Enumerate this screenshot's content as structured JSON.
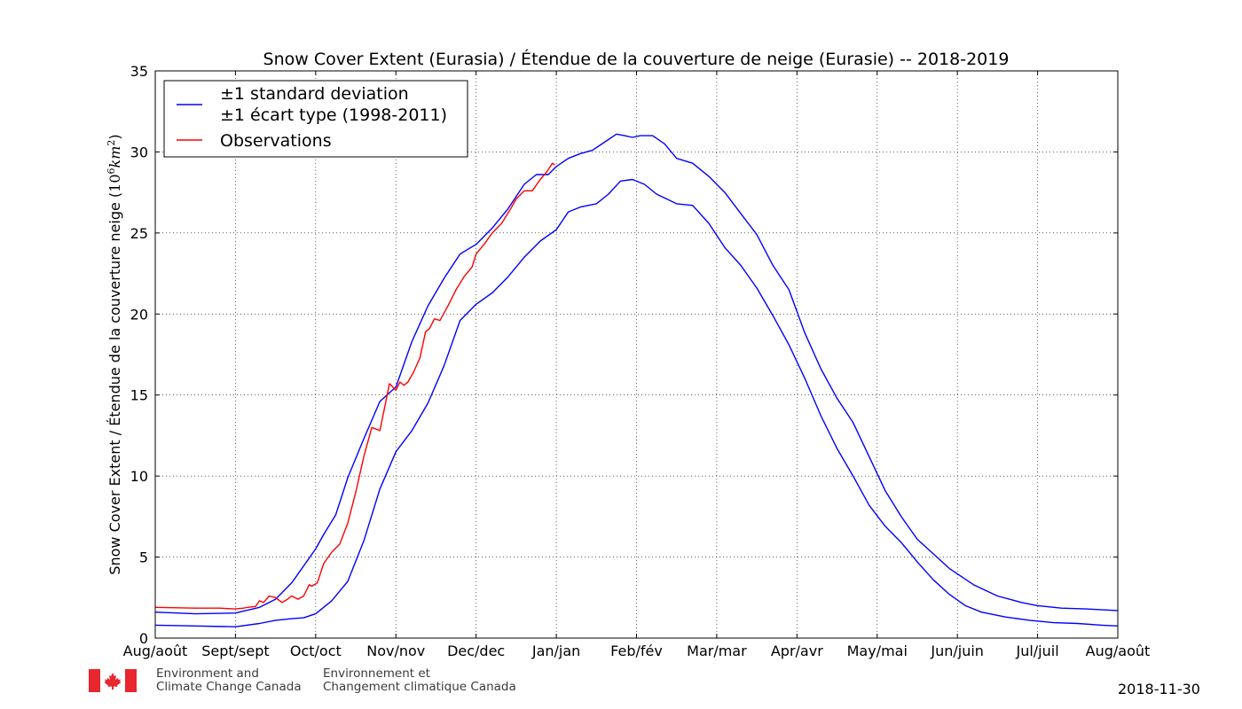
{
  "chart_data": {
    "type": "line",
    "title": "Snow Cover Extent (Eurasia) / Étendue de la couverture de neige (Eurasie) -- 2018-2019",
    "ylabel": "Snow Cover Extent / Étendue de la couverture neige",
    "ylabel_unit_base": "10",
    "ylabel_unit_exp": "6",
    "ylabel_unit_km": "km",
    "ylabel_unit_km_exp": "2",
    "x_ticks": [
      "Aug/août",
      "Sept/sept",
      "Oct/oct",
      "Nov/nov",
      "Dec/dec",
      "Jan/jan",
      "Feb/fév",
      "Mar/mar",
      "Apr/avr",
      "May/mai",
      "Jun/juin",
      "Jul/juil",
      "Aug/août"
    ],
    "y_ticks": [
      0,
      5,
      10,
      15,
      20,
      25,
      30,
      35
    ],
    "ylim": [
      0,
      35
    ],
    "grid": true,
    "legend_position": "top-left",
    "legend": [
      {
        "label_line1": "±1 standard deviation",
        "label_line2": "±1 écart type (1998-2011)",
        "color": "#0000ff"
      },
      {
        "label_line1": "Observations",
        "color": "#ff0000"
      }
    ],
    "series": [
      {
        "name": "±1 standard deviation (upper)",
        "color": "#0000ff",
        "x_month": [
          0,
          0.5,
          1.0,
          1.3,
          1.5,
          1.7,
          1.9,
          2.0,
          2.1,
          2.25,
          2.4,
          2.6,
          2.8,
          3.0,
          3.2,
          3.4,
          3.6,
          3.8,
          4.0,
          4.2,
          4.4,
          4.6,
          4.75,
          4.9,
          5.0,
          5.15,
          5.3,
          5.45,
          5.6,
          5.75,
          5.85,
          5.95,
          6.05,
          6.2,
          6.35,
          6.5,
          6.7,
          6.9,
          7.1,
          7.3,
          7.5,
          7.7,
          7.9,
          8.1,
          8.3,
          8.5,
          8.7,
          8.9,
          9.1,
          9.3,
          9.5,
          9.7,
          9.9,
          10.2,
          10.5,
          10.8,
          11.0,
          11.3,
          11.6,
          12.0
        ],
        "values": [
          1.6,
          1.5,
          1.55,
          1.9,
          2.4,
          3.4,
          4.8,
          5.5,
          6.4,
          7.6,
          9.9,
          12.3,
          14.6,
          15.5,
          18.3,
          20.5,
          22.2,
          23.7,
          24.3,
          25.3,
          26.5,
          28.0,
          28.6,
          28.6,
          29.1,
          29.6,
          29.9,
          30.1,
          30.6,
          31.1,
          31.0,
          30.9,
          31.0,
          31.0,
          30.5,
          29.6,
          29.3,
          28.5,
          27.5,
          26.2,
          24.9,
          23.0,
          21.5,
          18.8,
          16.6,
          14.8,
          13.3,
          11.2,
          9.1,
          7.5,
          6.1,
          5.2,
          4.3,
          3.3,
          2.6,
          2.2,
          2.0,
          1.85,
          1.8,
          1.7
        ]
      },
      {
        "name": "±1 standard deviation (lower)",
        "color": "#0000ff",
        "x_month": [
          0,
          0.5,
          1.0,
          1.3,
          1.5,
          1.7,
          1.85,
          2.0,
          2.2,
          2.4,
          2.6,
          2.8,
          3.0,
          3.2,
          3.4,
          3.6,
          3.8,
          4.0,
          4.2,
          4.4,
          4.6,
          4.8,
          5.0,
          5.15,
          5.3,
          5.5,
          5.65,
          5.8,
          5.95,
          6.1,
          6.25,
          6.5,
          6.7,
          6.9,
          7.1,
          7.3,
          7.5,
          7.7,
          7.9,
          8.1,
          8.3,
          8.5,
          8.7,
          8.9,
          9.1,
          9.3,
          9.5,
          9.7,
          9.9,
          10.1,
          10.3,
          10.6,
          10.9,
          11.2,
          11.5,
          11.8,
          12.0
        ],
        "values": [
          0.8,
          0.75,
          0.7,
          0.9,
          1.1,
          1.2,
          1.25,
          1.5,
          2.3,
          3.5,
          6.0,
          9.2,
          11.5,
          12.8,
          14.5,
          16.8,
          19.6,
          20.6,
          21.3,
          22.3,
          23.5,
          24.5,
          25.2,
          26.3,
          26.6,
          26.8,
          27.4,
          28.2,
          28.3,
          28.0,
          27.4,
          26.8,
          26.7,
          25.6,
          24.1,
          23.0,
          21.6,
          19.9,
          18.1,
          16.0,
          13.7,
          11.7,
          10.0,
          8.2,
          6.9,
          5.9,
          4.7,
          3.6,
          2.7,
          2.0,
          1.6,
          1.3,
          1.1,
          0.95,
          0.9,
          0.8,
          0.75
        ]
      },
      {
        "name": "Observations",
        "color": "#ff0000",
        "x_month": [
          0,
          0.5,
          0.8,
          1.0,
          1.1,
          1.15,
          1.25,
          1.3,
          1.35,
          1.42,
          1.5,
          1.58,
          1.65,
          1.7,
          1.78,
          1.85,
          1.92,
          1.95,
          2.02,
          2.1,
          2.2,
          2.3,
          2.4,
          2.5,
          2.6,
          2.7,
          2.8,
          2.85,
          2.92,
          3.0,
          3.05,
          3.1,
          3.15,
          3.22,
          3.3,
          3.37,
          3.42,
          3.48,
          3.55,
          3.65,
          3.75,
          3.85,
          3.95,
          4.0,
          4.1,
          4.2,
          4.32,
          4.42,
          4.5,
          4.6,
          4.7,
          4.8,
          4.87,
          4.9,
          4.95,
          4.98
        ],
        "values": [
          1.9,
          1.85,
          1.85,
          1.8,
          1.85,
          1.9,
          1.95,
          2.3,
          2.2,
          2.6,
          2.5,
          2.2,
          2.4,
          2.6,
          2.4,
          2.6,
          3.3,
          3.2,
          3.4,
          4.6,
          5.3,
          5.8,
          7.1,
          9.0,
          11.2,
          13.0,
          12.8,
          14.0,
          15.7,
          15.3,
          15.8,
          15.6,
          15.8,
          16.4,
          17.3,
          18.9,
          19.1,
          19.7,
          19.6,
          20.5,
          21.5,
          22.3,
          22.9,
          23.7,
          24.3,
          25.0,
          25.6,
          26.4,
          27.1,
          27.6,
          27.6,
          28.3,
          28.7,
          28.9,
          29.3,
          29.2
        ]
      }
    ]
  },
  "footer": {
    "org_en_line1": "Environment and",
    "org_en_line2": "Climate Change Canada",
    "org_fr_line1": "Environnement et",
    "org_fr_line2": "Changement climatique Canada",
    "date": "2018-11-30"
  }
}
